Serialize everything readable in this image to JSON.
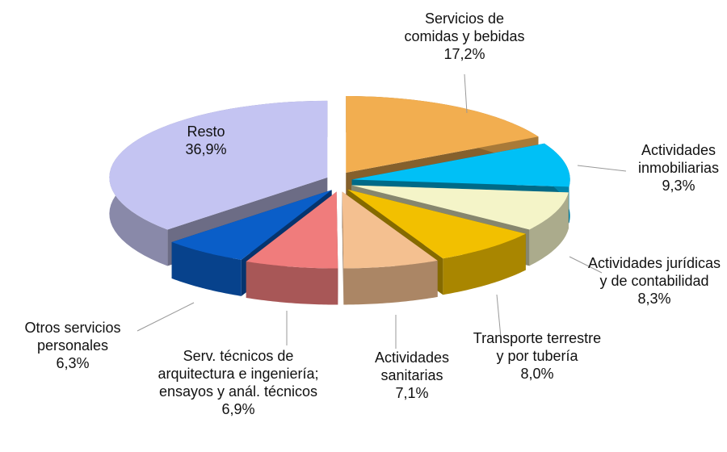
{
  "chart_data": {
    "type": "pie3d",
    "categories": [
      "Servicios de comidas y bebidas",
      "Actividades inmobiliarias",
      "Actividades jurídicas y de contabilidad",
      "Transporte terrestre y por tubería",
      "Actividades sanitarias",
      "Serv. técnicos de arquitectura e ingeniería; ensayos y anál. técnicos",
      "Otros servicios personales",
      "Resto"
    ],
    "values": [
      17.2,
      9.3,
      8.3,
      8.0,
      7.1,
      6.9,
      6.3,
      36.9
    ],
    "value_labels": [
      "17,2%",
      "9,3%",
      "8,3%",
      "8,0%",
      "7,1%",
      "6,9%",
      "6,3%",
      "36,9%"
    ],
    "colors": [
      "#f2ae50",
      "#00c0f6",
      "#f4f4c8",
      "#f2c000",
      "#f4c090",
      "#f07c7c",
      "#0a5ec8",
      "#c4c4f2"
    ]
  }
}
